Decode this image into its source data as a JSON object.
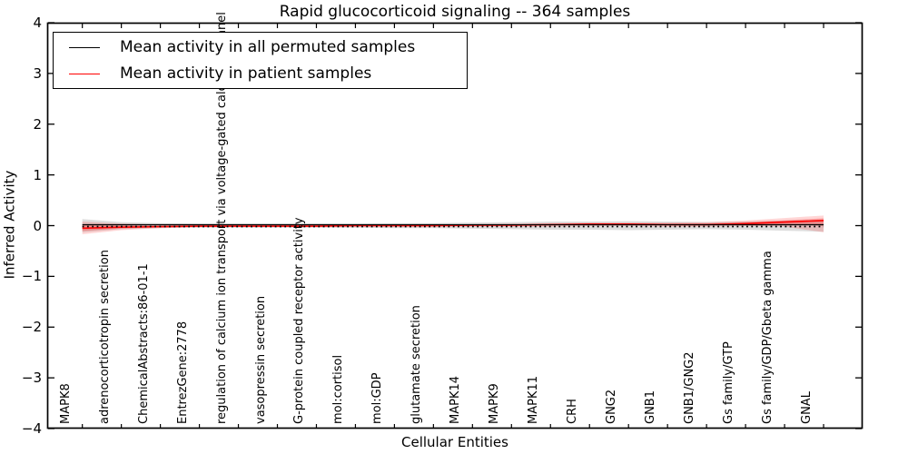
{
  "title": "Rapid glucocorticoid signaling -- 364 samples",
  "axes": {
    "xlabel": "Cellular Entities",
    "ylabel": "Inferred Activity"
  },
  "legend": {
    "entries": [
      {
        "label": "Mean activity in all permuted samples",
        "color": "#000000"
      },
      {
        "label": "Mean activity in patient samples",
        "color": "#ff0000"
      }
    ]
  },
  "colors": {
    "permuted_line": "#000000",
    "patient_line": "#ff0000",
    "permuted_band": "rgba(0,0,0,0.13)",
    "patient_band": "rgba(255,0,0,0.16)",
    "patient_band_core": "rgba(255,0,0,0.24)",
    "axis": "#000000"
  },
  "chart_data": {
    "type": "line",
    "title": "Rapid glucocorticoid signaling -- 364 samples",
    "xlabel": "Cellular Entities",
    "ylabel": "Inferred Activity",
    "ylim": [
      -4,
      4
    ],
    "xlim": [
      -0.9,
      20
    ],
    "grid": false,
    "legend_position": "upper left",
    "yticks": [
      {
        "value": 4,
        "label": "4"
      },
      {
        "value": 3,
        "label": "3"
      },
      {
        "value": 2,
        "label": "2"
      },
      {
        "value": 1,
        "label": "1"
      },
      {
        "value": 0,
        "label": "0"
      },
      {
        "value": -1,
        "label": "−1"
      },
      {
        "value": -2,
        "label": "−2"
      },
      {
        "value": -3,
        "label": "−3"
      },
      {
        "value": -4,
        "label": "−4"
      }
    ],
    "categories": [
      "MAPK8",
      "adrenocorticotropin secretion",
      "ChemicalAbstracts:86-01-1",
      "EntrezGene:2778",
      "regulation of calcium ion transport via voltage-gated calcium channel",
      "vasopressin secretion",
      "G-protein coupled receptor activity",
      "mol:cortisol",
      "mol:GDP",
      "glutamate secretion",
      "MAPK14",
      "MAPK9",
      "MAPK11",
      "CRH",
      "GNG2",
      "GNB1",
      "GNB1/GNG2",
      "Gs family/GTP",
      "Gs family/GDP/Gbeta gamma",
      "GNAL"
    ],
    "series": [
      {
        "name": "Mean activity in all permuted samples",
        "color": "#000000",
        "values": [
          0,
          0,
          0,
          0,
          0,
          0,
          0,
          0,
          0,
          0,
          0,
          0,
          0,
          0,
          0,
          0,
          0,
          0,
          0,
          0
        ]
      },
      {
        "name": "Mean activity in patient samples",
        "color": "#ff0000",
        "values": [
          -0.05,
          -0.03,
          -0.02,
          -0.01,
          -0.01,
          -0.01,
          -0.01,
          0.0,
          0.0,
          0.0,
          0.01,
          0.01,
          0.02,
          0.03,
          0.03,
          0.02,
          0.02,
          0.04,
          0.07,
          0.1
        ]
      }
    ],
    "bands": [
      {
        "name": "permuted samples range",
        "lower": [
          -0.13,
          -0.07,
          -0.05,
          -0.04,
          -0.04,
          -0.04,
          -0.04,
          -0.04,
          -0.05,
          -0.05,
          -0.06,
          -0.07,
          -0.08,
          -0.08,
          -0.09,
          -0.08,
          -0.07,
          -0.08,
          -0.1,
          -0.12
        ],
        "upper": [
          0.13,
          0.07,
          0.05,
          0.04,
          0.04,
          0.04,
          0.04,
          0.04,
          0.05,
          0.05,
          0.06,
          0.07,
          0.08,
          0.08,
          0.09,
          0.08,
          0.07,
          0.08,
          0.1,
          0.12
        ]
      },
      {
        "name": "patient samples range",
        "lower": [
          -0.17,
          -0.09,
          -0.05,
          -0.03,
          -0.03,
          -0.03,
          -0.03,
          -0.03,
          -0.03,
          -0.03,
          -0.02,
          -0.02,
          -0.02,
          -0.01,
          -0.01,
          -0.02,
          -0.02,
          -0.01,
          -0.02,
          -0.13
        ],
        "upper": [
          0.08,
          0.04,
          0.02,
          0.01,
          0.01,
          0.01,
          0.01,
          0.02,
          0.02,
          0.02,
          0.03,
          0.04,
          0.05,
          0.06,
          0.06,
          0.06,
          0.07,
          0.1,
          0.15,
          0.2
        ]
      }
    ],
    "zero_line": {
      "value": 0,
      "style": "dotted",
      "color": "#000000"
    }
  }
}
